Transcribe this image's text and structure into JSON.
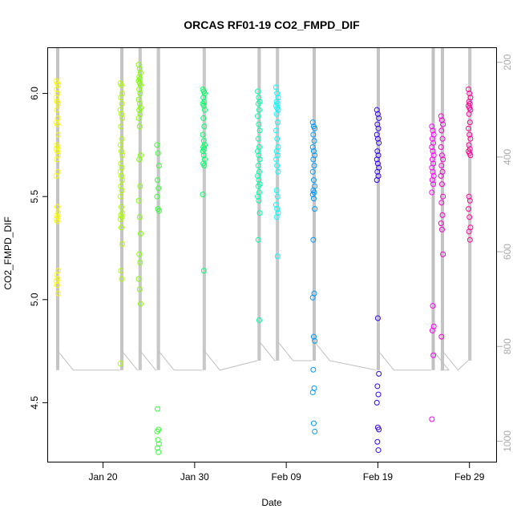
{
  "chart_data": {
    "type": "scatter",
    "title": "ORCAS RF01-19 CO2_FMPD_DIF",
    "xlabel": "Date",
    "ylabel": "CO2_FMPD_DIF",
    "x_is_date": true,
    "xlim": [
      "2016-01-14",
      "2016-03-03"
    ],
    "ylim": [
      4.21,
      6.22
    ],
    "x_ticks": [
      {
        "label": "Jan 20",
        "date": "2016-01-20"
      },
      {
        "label": "Jan 30",
        "date": "2016-01-30"
      },
      {
        "label": "Feb 09",
        "date": "2016-02-09"
      },
      {
        "label": "Feb 19",
        "date": "2016-02-19"
      },
      {
        "label": "Feb 29",
        "date": "2016-02-29"
      }
    ],
    "y_ticks": [
      "4.5",
      "5.0",
      "5.5",
      "6.0"
    ],
    "y2_ticks": [
      "200",
      "400",
      "600",
      "800",
      "1000"
    ],
    "y2_range_top_at_top": 170,
    "y2_range_bottom_at_bottom": 1045,
    "series": [
      {
        "date": "2016-01-15",
        "color": "#ffff00",
        "values": [
          6.06,
          6.05,
          6.04,
          6.02,
          6.0,
          5.98,
          5.96,
          5.95,
          5.92,
          5.88,
          5.86,
          5.85,
          5.8,
          5.75,
          5.74,
          5.73,
          5.72,
          5.7,
          5.68,
          5.62,
          5.6,
          5.45,
          5.42,
          5.41,
          5.4,
          5.39,
          5.38,
          5.14,
          5.12,
          5.1,
          5.09,
          5.07,
          5.03
        ]
      },
      {
        "date": "2016-01-22",
        "color": "#aaff00",
        "values": [
          6.05,
          6.04,
          6.0,
          5.98,
          5.95,
          5.92,
          5.9,
          5.88,
          5.84,
          5.78,
          5.75,
          5.72,
          5.7,
          5.66,
          5.64,
          5.62,
          5.6,
          5.58,
          5.55,
          5.53,
          5.5,
          5.45,
          5.42,
          5.41,
          5.4,
          5.39,
          5.35,
          5.27,
          5.14,
          5.1,
          4.69
        ]
      },
      {
        "date": "2016-01-24",
        "color": "#7fff00",
        "values": [
          6.14,
          6.12,
          6.1,
          6.08,
          6.07,
          6.06,
          6.05,
          6.04,
          6.02,
          6.0,
          5.97,
          5.95,
          5.93,
          5.92,
          5.9,
          5.88,
          5.84,
          5.7,
          5.68,
          5.55,
          5.48,
          5.4,
          5.32,
          5.22,
          5.18,
          5.1,
          5.05,
          4.98
        ]
      },
      {
        "date": "2016-01-26",
        "color": "#33ff33",
        "values": [
          5.75,
          5.71,
          5.65,
          5.58,
          5.54,
          5.5,
          5.44,
          5.43,
          4.47,
          4.37,
          4.36,
          4.32,
          4.3,
          4.28,
          4.26
        ]
      },
      {
        "date": "2016-01-31",
        "color": "#00ff66",
        "values": [
          6.02,
          6.01,
          6.0,
          5.98,
          5.96,
          5.95,
          5.94,
          5.92,
          5.88,
          5.84,
          5.8,
          5.77,
          5.75,
          5.74,
          5.73,
          5.72,
          5.7,
          5.68,
          5.66,
          5.65,
          5.51,
          5.14
        ]
      },
      {
        "date": "2016-02-06",
        "color": "#00ffaa",
        "values": [
          6.01,
          5.98,
          5.96,
          5.95,
          5.92,
          5.89,
          5.85,
          5.82,
          5.78,
          5.74,
          5.72,
          5.7,
          5.68,
          5.65,
          5.62,
          5.6,
          5.58,
          5.56,
          5.55,
          5.52,
          5.5,
          5.48,
          5.42,
          5.29,
          4.9
        ]
      },
      {
        "date": "2016-02-08",
        "color": "#00ffff",
        "values": [
          6.03,
          6.0,
          5.98,
          5.96,
          5.95,
          5.94,
          5.93,
          5.92,
          5.9,
          5.86,
          5.82,
          5.78,
          5.74,
          5.72,
          5.7,
          5.68,
          5.65,
          5.62,
          5.53,
          5.5,
          5.46,
          5.44,
          5.42,
          5.4,
          5.21
        ]
      },
      {
        "date": "2016-02-12",
        "color": "#0099ff",
        "values": [
          5.86,
          5.84,
          5.83,
          5.8,
          5.77,
          5.74,
          5.72,
          5.7,
          5.68,
          5.65,
          5.62,
          5.58,
          5.55,
          5.53,
          5.52,
          5.51,
          5.49,
          5.44,
          5.29,
          5.03,
          5.01,
          4.82,
          4.8,
          4.66,
          4.57,
          4.55,
          4.4,
          4.36
        ]
      },
      {
        "date": "2016-02-19",
        "color": "#3300ff",
        "values": [
          5.92,
          5.9,
          5.88,
          5.85,
          5.83,
          5.8,
          5.78,
          5.76,
          5.72,
          5.7,
          5.68,
          5.66,
          5.64,
          5.62,
          5.6,
          5.58,
          4.91,
          4.64,
          4.58,
          4.54,
          4.5,
          4.38,
          4.37,
          4.31,
          4.27
        ]
      },
      {
        "date": "2016-02-25",
        "color": "#ff00ff",
        "values": [
          5.84,
          5.82,
          5.8,
          5.78,
          5.76,
          5.74,
          5.72,
          5.7,
          5.68,
          5.66,
          5.64,
          5.62,
          5.6,
          5.58,
          5.56,
          5.52,
          4.97,
          4.87,
          4.85,
          4.73,
          4.42
        ]
      },
      {
        "date": "2016-02-26",
        "color": "#ee00cc",
        "values": [
          5.89,
          5.87,
          5.85,
          5.82,
          5.78,
          5.74,
          5.7,
          5.68,
          5.65,
          5.62,
          5.6,
          5.56,
          5.5,
          5.47,
          5.41,
          5.37,
          5.34,
          5.22,
          4.82
        ]
      },
      {
        "date": "2016-02-29",
        "color": "#ff0099",
        "values": [
          6.02,
          6.0,
          5.98,
          5.96,
          5.95,
          5.94,
          5.93,
          5.92,
          5.9,
          5.86,
          5.83,
          5.8,
          5.78,
          5.75,
          5.73,
          5.72,
          5.71,
          5.7,
          5.5,
          5.48,
          5.44,
          5.4,
          5.35,
          5.33,
          5.29
        ]
      }
    ],
    "altitude_trace": {
      "color": "#c0c0c0",
      "segments": [
        {
          "start": "2016-01-15",
          "end": "2016-01-15",
          "base": 850
        },
        {
          "start": "2016-01-22",
          "end": "2016-01-22",
          "base": 850
        },
        {
          "start": "2016-01-24",
          "end": "2016-01-24",
          "base": 850
        },
        {
          "start": "2016-01-26",
          "end": "2016-01-26",
          "base": 850
        },
        {
          "start": "2016-01-31",
          "end": "2016-01-31",
          "base": 850
        },
        {
          "start": "2016-02-06",
          "end": "2016-02-06",
          "base": 830
        },
        {
          "start": "2016-02-08",
          "end": "2016-02-08",
          "base": 830
        },
        {
          "start": "2016-02-12",
          "end": "2016-02-12",
          "base": 830
        },
        {
          "start": "2016-02-19",
          "end": "2016-02-19",
          "base": 850
        },
        {
          "start": "2016-02-25",
          "end": "2016-02-25",
          "base": 850
        },
        {
          "start": "2016-02-26",
          "end": "2016-02-26",
          "base": 850
        },
        {
          "start": "2016-02-29",
          "end": "2016-02-29",
          "base": 830
        }
      ]
    },
    "grid": false,
    "legend": "none"
  }
}
